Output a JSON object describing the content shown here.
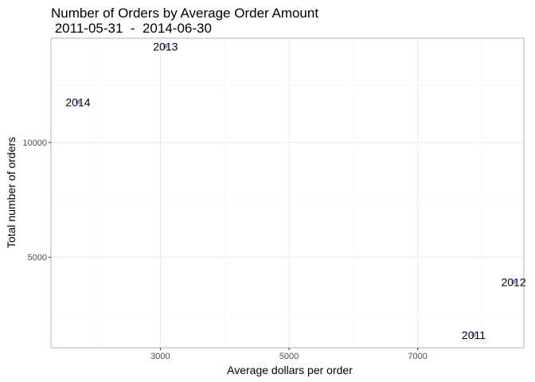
{
  "chart_data": {
    "type": "scatter",
    "title": "Number of Orders by Average Order Amount",
    "subtitle": " 2011-05-31  -  2014-06-30",
    "xlabel": "Average dollars per order",
    "ylabel": "Total number of orders",
    "xlim": [
      1300,
      8650
    ],
    "ylim": [
      1050,
      14550
    ],
    "x_ticks": [
      3000,
      5000,
      7000
    ],
    "x_minor_ticks": [
      2000,
      4000,
      6000,
      8000
    ],
    "y_ticks": [
      5000,
      10000
    ],
    "y_minor_ticks": [
      2500,
      7500,
      12500
    ],
    "grid": true,
    "point_color": "#a3a3ff",
    "points": [
      {
        "label": "2013",
        "x": 3080,
        "y": 14190
      },
      {
        "label": "2014",
        "x": 1720,
        "y": 11760
      },
      {
        "label": "2012",
        "x": 8490,
        "y": 3920
      },
      {
        "label": "2011",
        "x": 7870,
        "y": 1610
      }
    ]
  }
}
